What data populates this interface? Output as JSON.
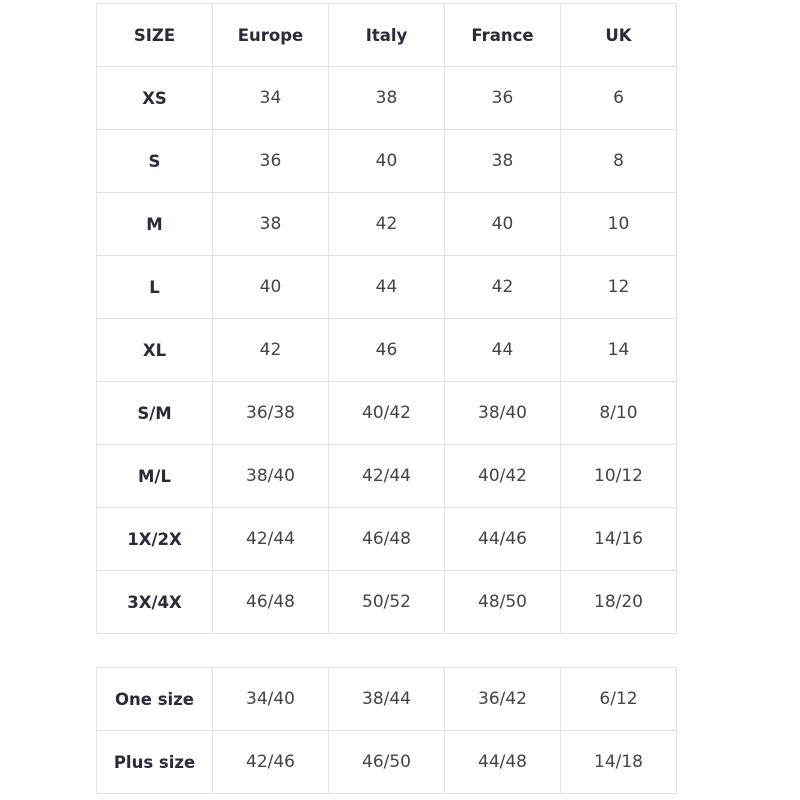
{
  "table1": {
    "headers": [
      "SIZE",
      "Europe",
      "Italy",
      "France",
      "UK"
    ],
    "rows": [
      [
        "XS",
        "34",
        "38",
        "36",
        "6"
      ],
      [
        "S",
        "36",
        "40",
        "38",
        "8"
      ],
      [
        "M",
        "38",
        "42",
        "40",
        "10"
      ],
      [
        "L",
        "40",
        "44",
        "42",
        "12"
      ],
      [
        "XL",
        "42",
        "46",
        "44",
        "14"
      ],
      [
        "S/M",
        "36/38",
        "40/42",
        "38/40",
        "8/10"
      ],
      [
        "M/L",
        "38/40",
        "42/44",
        "40/42",
        "10/12"
      ],
      [
        "1X/2X",
        "42/44",
        "46/48",
        "44/46",
        "14/16"
      ],
      [
        "3X/4X",
        "46/48",
        "50/52",
        "48/50",
        "18/20"
      ]
    ]
  },
  "table2": {
    "rows": [
      [
        "One size",
        "34/40",
        "38/44",
        "36/42",
        "6/12"
      ],
      [
        "Plus size",
        "42/46",
        "46/50",
        "44/48",
        "14/18"
      ]
    ]
  }
}
